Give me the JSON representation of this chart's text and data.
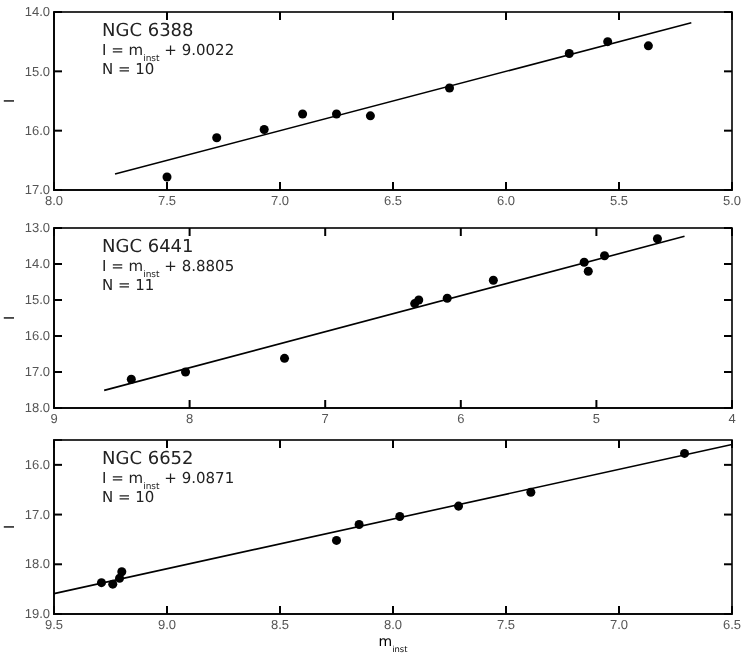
{
  "chart_data": [
    {
      "type": "scatter",
      "ylabel": "I",
      "annotations": [
        "NGC 6388",
        "I = m$_{inst}$ + 9.0022",
        "N = 10"
      ],
      "xlim": [
        8.0,
        5.0
      ],
      "xticks": [
        {
          "value": 8,
          "label": "8.0"
        },
        7.5,
        {
          "value": 7,
          "label": "7.0"
        },
        6.5,
        {
          "value": 6,
          "label": "6.0"
        },
        5.5,
        {
          "value": 5,
          "label": "5.0"
        }
      ],
      "ylim": [
        17.0,
        14.0
      ],
      "yticks": [
        {
          "value": 14,
          "label": "14.0"
        },
        {
          "value": 15,
          "label": "15.0"
        },
        {
          "value": 16,
          "label": "16.0"
        },
        {
          "value": 17,
          "label": "17.0"
        }
      ],
      "series": [
        {
          "marker": "circle",
          "color": "#000000",
          "x": [
            7.5,
            7.28,
            7.07,
            6.9,
            6.75,
            6.6,
            6.25,
            5.72,
            5.55,
            5.37
          ],
          "values": [
            16.78,
            16.12,
            15.98,
            15.72,
            15.72,
            15.75,
            15.28,
            14.7,
            14.5,
            14.57
          ]
        },
        {
          "type": "line",
          "marker": "none",
          "color": "#000000",
          "x": [
            7.73,
            5.18
          ],
          "values": [
            16.73,
            14.18
          ]
        }
      ]
    },
    {
      "type": "scatter",
      "ylabel": "I",
      "annotations": [
        "NGC 6441",
        "I = m$_{inst}$ + 8.8805",
        "N = 11"
      ],
      "xlim": [
        9,
        4
      ],
      "xticks": [
        9,
        8,
        7,
        6,
        5,
        4
      ],
      "ylim": [
        18.0,
        13.0
      ],
      "yticks": [
        {
          "value": 13,
          "label": "13.0"
        },
        {
          "value": 14,
          "label": "14.0"
        },
        {
          "value": 15,
          "label": "15.0"
        },
        {
          "value": 16,
          "label": "16.0"
        },
        {
          "value": 17,
          "label": "17.0"
        },
        {
          "value": 18,
          "label": "18.0"
        }
      ],
      "series": [
        {
          "marker": "circle",
          "color": "#000000",
          "x": [
            8.43,
            8.03,
            7.3,
            6.34,
            6.31,
            6.1,
            5.76,
            5.09,
            5.06,
            4.94,
            4.55
          ],
          "values": [
            17.2,
            17.0,
            16.62,
            15.1,
            15.0,
            14.95,
            14.45,
            13.95,
            14.2,
            13.77,
            13.3
          ]
        },
        {
          "type": "line",
          "marker": "none",
          "color": "#000000",
          "x": [
            8.63,
            4.35
          ],
          "values": [
            17.51,
            13.23
          ]
        }
      ]
    },
    {
      "type": "scatter",
      "xlabel": "m$_{inst}$",
      "ylabel": "I",
      "annotations": [
        "NGC 6652",
        "I = m$_{inst}$ + 9.0871",
        "N = 10"
      ],
      "xlim": [
        9.5,
        6.5
      ],
      "xticks": [
        9.5,
        {
          "value": 9,
          "label": "9.0"
        },
        8.5,
        {
          "value": 8,
          "label": "8.0"
        },
        7.5,
        {
          "value": 7,
          "label": "7.0"
        },
        6.5
      ],
      "ylim": [
        19.0,
        15.5
      ],
      "yticks": [
        {
          "value": 16,
          "label": "16.0"
        },
        {
          "value": 17,
          "label": "17.0"
        },
        {
          "value": 18,
          "label": "18.0"
        },
        {
          "value": 19,
          "label": "19.0"
        }
      ],
      "series": [
        {
          "marker": "circle",
          "color": "#000000",
          "x": [
            9.29,
            9.24,
            9.21,
            9.2,
            8.25,
            8.15,
            7.97,
            7.71,
            7.39,
            6.71
          ],
          "values": [
            18.37,
            18.4,
            18.28,
            18.15,
            17.52,
            17.2,
            17.04,
            16.83,
            16.55,
            15.77
          ]
        },
        {
          "type": "line",
          "marker": "none",
          "color": "#000000",
          "x": [
            9.5,
            6.5
          ],
          "values": [
            18.59,
            15.59
          ]
        }
      ]
    }
  ]
}
